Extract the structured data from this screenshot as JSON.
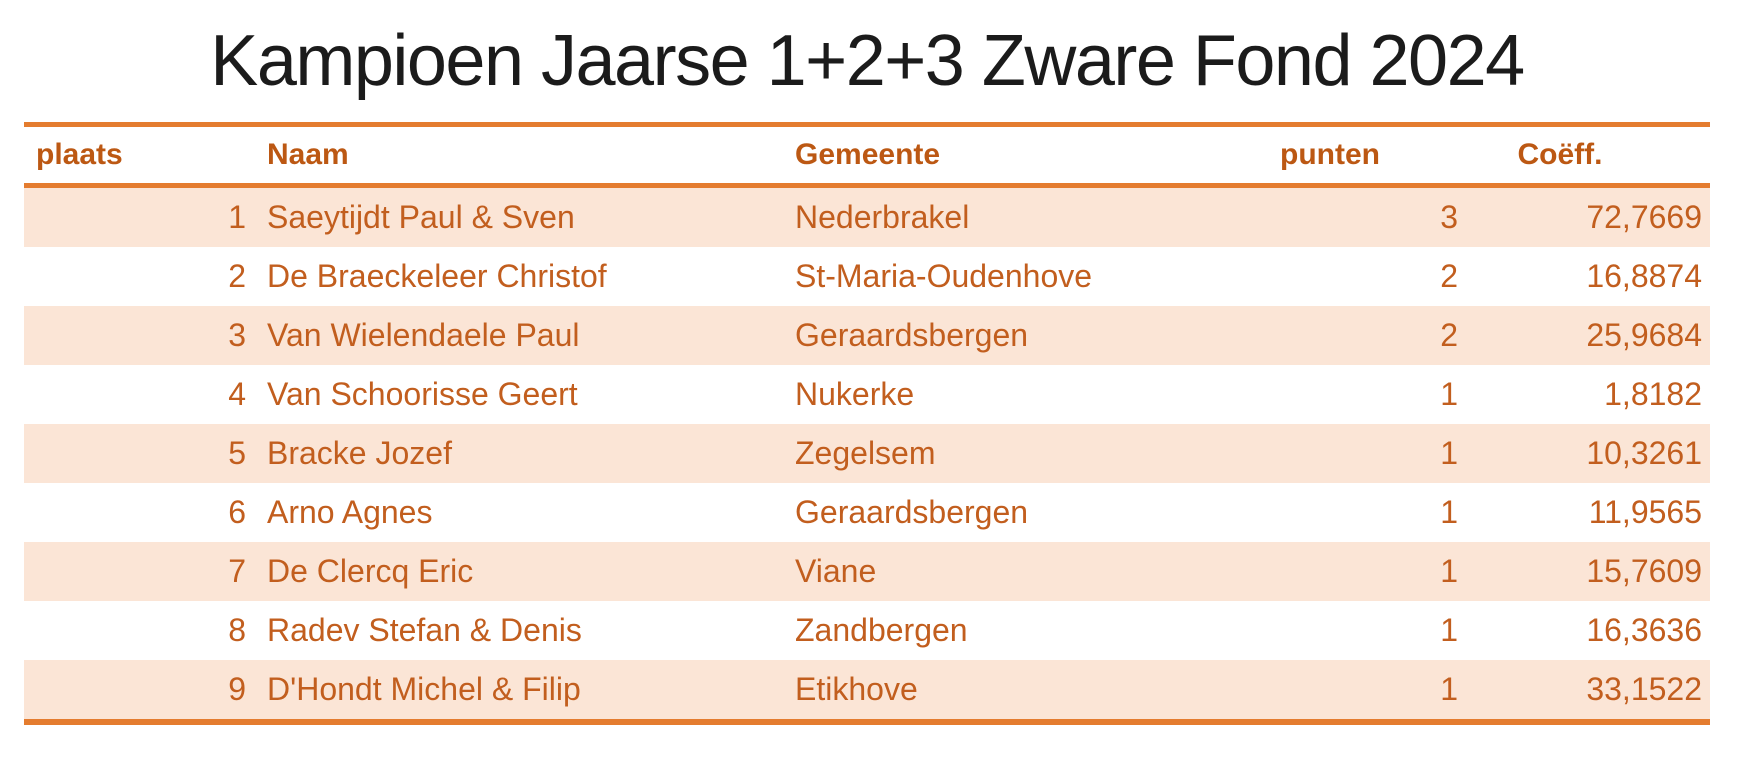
{
  "title": "Kampioen Jaarse 1+2+3 Zware Fond 2024",
  "table": {
    "columns": [
      {
        "key": "plaats",
        "label": "plaats"
      },
      {
        "key": "naam",
        "label": "Naam"
      },
      {
        "key": "gemeente",
        "label": "Gemeente"
      },
      {
        "key": "punten",
        "label": "punten"
      },
      {
        "key": "coeff",
        "label": "Coëff."
      }
    ],
    "rows": [
      {
        "plaats": "1",
        "naam": "Saeytijdt Paul & Sven",
        "gemeente": "Nederbrakel",
        "punten": "3",
        "coeff": "72,7669"
      },
      {
        "plaats": "2",
        "naam": "De Braeckeleer Christof",
        "gemeente": "St-Maria-Oudenhove",
        "punten": "2",
        "coeff": "16,8874"
      },
      {
        "plaats": "3",
        "naam": "Van Wielendaele Paul",
        "gemeente": "Geraardsbergen",
        "punten": "2",
        "coeff": "25,9684"
      },
      {
        "plaats": "4",
        "naam": "Van Schoorisse Geert",
        "gemeente": "Nukerke",
        "punten": "1",
        "coeff": "1,8182"
      },
      {
        "plaats": "5",
        "naam": "Bracke Jozef",
        "gemeente": "Zegelsem",
        "punten": "1",
        "coeff": "10,3261"
      },
      {
        "plaats": "6",
        "naam": "Arno Agnes",
        "gemeente": "Geraardsbergen",
        "punten": "1",
        "coeff": "11,9565"
      },
      {
        "plaats": "7",
        "naam": "De Clercq Eric",
        "gemeente": "Viane",
        "punten": "1",
        "coeff": "15,7609"
      },
      {
        "plaats": "8",
        "naam": "Radev Stefan & Denis",
        "gemeente": "Zandbergen",
        "punten": "1",
        "coeff": "16,3636"
      },
      {
        "plaats": "9",
        "naam": "D'Hondt Michel & Filip",
        "gemeente": "Etikhove",
        "punten": "1",
        "coeff": "33,1522"
      }
    ]
  },
  "colors": {
    "rule": "#E47C2F",
    "row_alt_fill": "#FBE5D6",
    "text": "#C25E1E",
    "header_text": "#BC5813",
    "title_text": "#1B1B1B",
    "background": "#FFFFFF"
  }
}
